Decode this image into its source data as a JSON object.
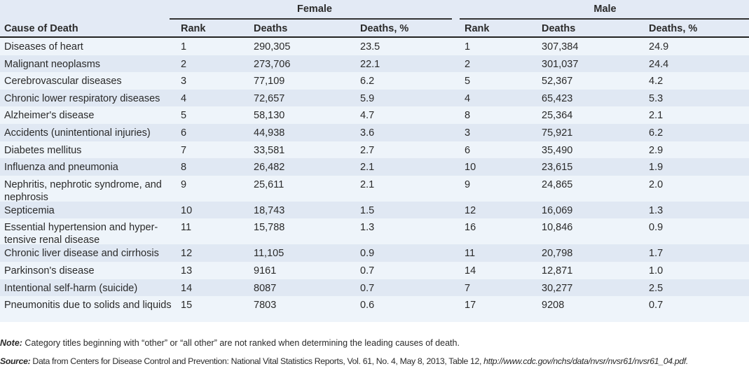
{
  "table": {
    "groups": {
      "female": "Female",
      "male": "Male"
    },
    "headers": [
      "Cause of Death",
      "Rank",
      "Deaths",
      "Deaths, %",
      "Rank",
      "Deaths",
      "Deaths, %"
    ],
    "rows": [
      [
        "Diseases of heart",
        "1",
        "290,305",
        "23.5",
        "1",
        "307,384",
        "24.9"
      ],
      [
        "Malignant neoplasms",
        "2",
        "273,706",
        "22.1",
        "2",
        "301,037",
        "24.4"
      ],
      [
        "Cerebrovascular diseases",
        "3",
        "77,109",
        "6.2",
        "5",
        "52,367",
        "4.2"
      ],
      [
        "Chronic lower respiratory diseases",
        "4",
        "72,657",
        "5.9",
        "4",
        "65,423",
        "5.3"
      ],
      [
        "Alzheimer's disease",
        "5",
        "58,130",
        "4.7",
        "8",
        "25,364",
        "2.1"
      ],
      [
        "Accidents (unintentional injuries)",
        "6",
        "44,938",
        "3.6",
        "3",
        "75,921",
        "6.2"
      ],
      [
        "Diabetes mellitus",
        "7",
        "33,581",
        "2.7",
        "6",
        "35,490",
        "2.9"
      ],
      [
        "Influenza and pneumonia",
        "8",
        "26,482",
        "2.1",
        "10",
        "23,615",
        "1.9"
      ],
      [
        "Nephritis, nephrotic syndrome, and nephrosis",
        "9",
        "25,611",
        "2.1",
        "9",
        "24,865",
        "2.0"
      ],
      [
        "Septicemia",
        "10",
        "18,743",
        "1.5",
        "12",
        "16,069",
        "1.3"
      ],
      [
        "Essential hypertension and hyper-tensive renal disease",
        "11",
        "15,788",
        "1.3",
        "16",
        "10,846",
        "0.9"
      ],
      [
        "Chronic liver disease and cirrhosis",
        "12",
        "11,105",
        "0.9",
        "11",
        "20,798",
        "1.7"
      ],
      [
        "Parkinson's disease",
        "13",
        "9161",
        "0.7",
        "14",
        "12,871",
        "1.0"
      ],
      [
        "Intentional self-harm (suicide)",
        "14",
        "8087",
        "0.7",
        "7",
        "30,277",
        "2.5"
      ],
      [
        "Pneumonitis due to solids and liquids",
        "15",
        "7803",
        "0.6",
        "17",
        "9208",
        "0.7"
      ]
    ]
  },
  "note": {
    "label": "Note:",
    "text": " Category titles beginning with “other” or “all other” are not ranked when determining the leading causes of death."
  },
  "source": {
    "label": "Source:",
    "text": " Data from Centers for Disease Control and Prevention: National Vital Statistics Reports, Vol. 61, No. 4, May 8, 2013, Table 12, ",
    "link": "http://www.cdc.gov/nchs/data/nvsr/nvsr61/nvsr61_04.pdf."
  }
}
